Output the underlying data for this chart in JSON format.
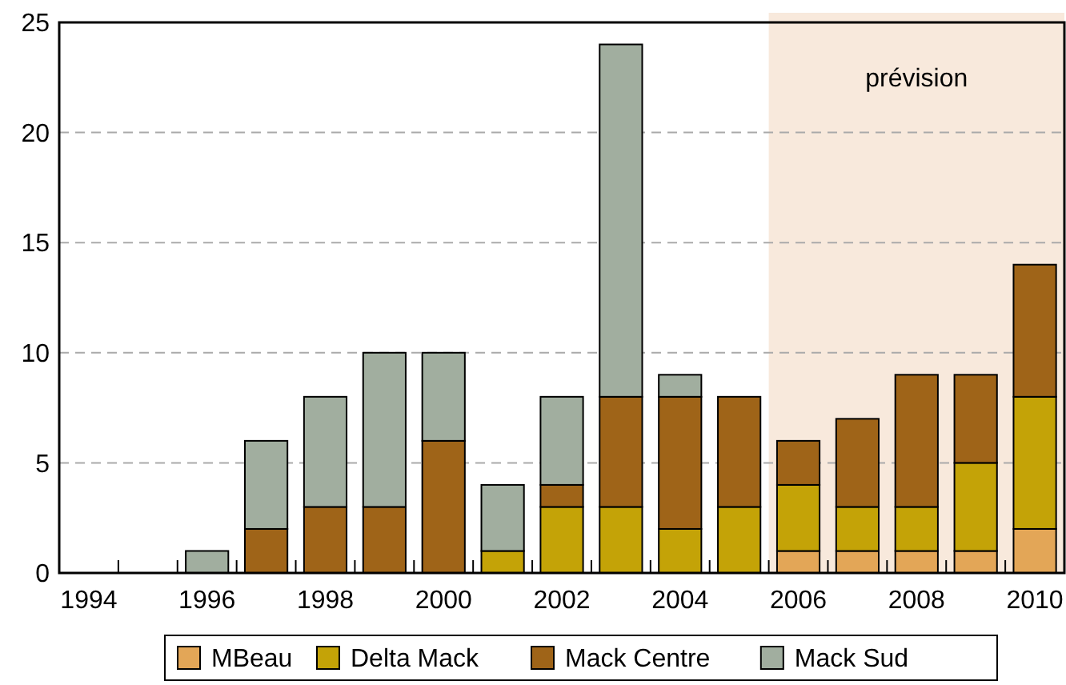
{
  "chart_data": {
    "type": "bar",
    "stacked": true,
    "categories": [
      "1994",
      null,
      "1996",
      null,
      "1998",
      null,
      "2000",
      null,
      "2002",
      null,
      "2004",
      null,
      "2006",
      null,
      "2008",
      null,
      "2010"
    ],
    "series": [
      {
        "name": "MBeau",
        "color": "#e3a657",
        "values": [
          0,
          0,
          0,
          0,
          0,
          0,
          0,
          0,
          0,
          0,
          0,
          0,
          1,
          1,
          1,
          1,
          2
        ]
      },
      {
        "name": "Delta Mack",
        "color": "#c4a307",
        "values": [
          0,
          0,
          0,
          0,
          0,
          0,
          0,
          1,
          3,
          3,
          2,
          3,
          3,
          2,
          2,
          4,
          6
        ]
      },
      {
        "name": "Mack Centre",
        "color": "#9f6418",
        "values": [
          0,
          0,
          0,
          2,
          3,
          3,
          6,
          0,
          1,
          5,
          6,
          5,
          2,
          4,
          6,
          4,
          6
        ]
      },
      {
        "name": "Mack Sud",
        "color": "#a1ae9f",
        "values": [
          0,
          0,
          1,
          4,
          5,
          7,
          4,
          3,
          4,
          16,
          1,
          0,
          0,
          0,
          0,
          0,
          0
        ]
      }
    ],
    "ylim": [
      0,
      25
    ],
    "yticks": [
      0,
      5,
      10,
      15,
      20,
      25
    ],
    "grid": "y",
    "legend": "bottom",
    "bands": [
      {
        "axis": "x",
        "from": "2006",
        "to": "2010",
        "label": "prévision",
        "color": "#f8e9dc"
      }
    ]
  }
}
